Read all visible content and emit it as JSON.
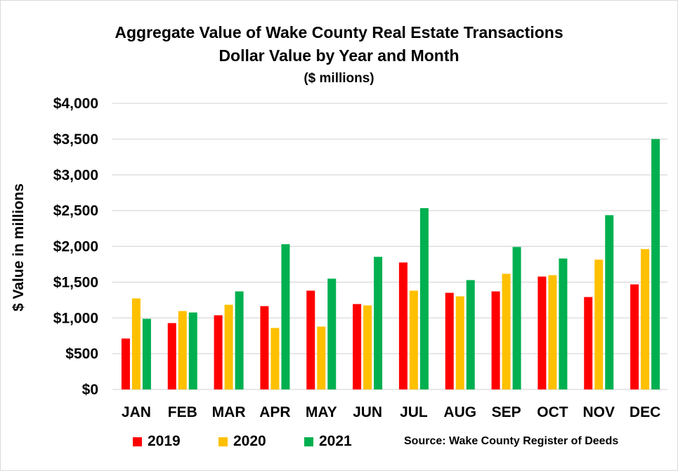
{
  "chart_data": {
    "type": "bar",
    "title": "Aggregate Value of Wake County Real Estate Transactions",
    "subtitle": "Dollar Value by Year and Month",
    "units_note": "($ millions)",
    "xlabel": "",
    "ylabel": "$ Value in millions",
    "ylim": [
      0,
      4000
    ],
    "yticks": [
      0,
      500,
      1000,
      1500,
      2000,
      2500,
      3000,
      3500,
      4000
    ],
    "ytick_labels": [
      "$0",
      "$500",
      "$1,000",
      "$1,500",
      "$2,000",
      "$2,500",
      "$3,000",
      "$3,500",
      "$4,000"
    ],
    "grid": true,
    "legend_position": "bottom",
    "categories": [
      "JAN",
      "FEB",
      "MAR",
      "APR",
      "MAY",
      "JUN",
      "JUL",
      "AUG",
      "SEP",
      "OCT",
      "NOV",
      "DEC"
    ],
    "series": [
      {
        "name": "2019",
        "color": "#ff0000",
        "values": [
          712,
          928,
          1037,
          1165,
          1381,
          1194,
          1775,
          1351,
          1371,
          1578,
          1292,
          1469
        ]
      },
      {
        "name": "2020",
        "color": "#ffc000",
        "values": [
          1273,
          1096,
          1184,
          860,
          879,
          1175,
          1381,
          1302,
          1617,
          1598,
          1815,
          1962
        ]
      },
      {
        "name": "2021",
        "color": "#00b050",
        "values": [
          988,
          1076,
          1371,
          2031,
          1549,
          1854,
          2535,
          1529,
          1992,
          1831,
          2436,
          3501
        ]
      }
    ],
    "annotation": "Source: Wake County Register of Deeds"
  }
}
